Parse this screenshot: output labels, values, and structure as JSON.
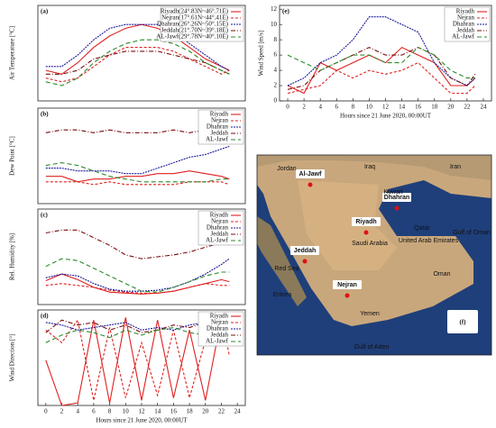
{
  "chart_data": [
    {
      "type": "line",
      "panel_label": "(a)",
      "ylabel": "Air Temperature [°C]",
      "xlim": [
        -1,
        25
      ],
      "ylim": [
        20,
        45
      ],
      "legend": "upper right",
      "x": [
        0,
        2,
        4,
        6,
        8,
        10,
        12,
        14,
        16,
        18,
        20,
        22,
        23
      ],
      "series": [
        {
          "name": "Riyadh(24°.83N~46°.71E)",
          "color": "#e02020",
          "values": [
            28,
            27,
            30,
            34,
            37,
            39,
            40,
            39,
            37,
            34,
            31,
            29,
            28
          ]
        },
        {
          "name": "Nejran(17°.61N~44°.41E)",
          "color": "#e02020",
          "dash": "3 2",
          "values": [
            26,
            25,
            26,
            29,
            32,
            34,
            34,
            34,
            33,
            31,
            29,
            27,
            28
          ]
        },
        {
          "name": "Dhahran(26°.26N~50°.15E)",
          "color": "#1a1a9a",
          "dash": "2 1",
          "values": [
            29,
            29,
            32,
            36,
            39,
            40,
            40,
            40,
            38,
            35,
            32,
            29,
            28
          ]
        },
        {
          "name": "Jeddah(21°.70N~39°.18E)",
          "color": "#7a0c0c",
          "dash": "5 2 1 2",
          "values": [
            27,
            27,
            28,
            31,
            32,
            33,
            33,
            33,
            32,
            31,
            30,
            28,
            27
          ]
        },
        {
          "name": "AL-Jawf(29°.78N~40°.10E)",
          "color": "#2a8a2a",
          "dash": "5 3",
          "values": [
            25,
            24,
            26,
            30,
            33,
            35,
            36,
            36,
            35,
            33,
            30,
            28,
            27
          ]
        }
      ]
    },
    {
      "type": "line",
      "panel_label": "(b)",
      "ylabel": "Dew Point [°C]",
      "xlim": [
        -1,
        25
      ],
      "ylim": [
        -5,
        30
      ],
      "legend": "upper right",
      "x": [
        0,
        2,
        4,
        6,
        8,
        10,
        12,
        14,
        16,
        18,
        20,
        22,
        23
      ],
      "series": [
        {
          "name": "Riyadh",
          "color": "#e02020",
          "values": [
            5,
            5,
            3,
            4,
            4,
            5,
            5,
            6,
            6,
            7,
            6,
            5,
            4
          ]
        },
        {
          "name": "Nejran",
          "color": "#e02020",
          "dash": "3 2",
          "values": [
            3,
            3,
            3,
            2,
            3,
            2,
            2,
            2,
            2,
            3,
            3,
            3,
            2
          ]
        },
        {
          "name": "Dhahran",
          "color": "#1a1a9a",
          "dash": "2 1",
          "values": [
            8,
            8,
            7,
            7,
            7,
            6,
            6,
            8,
            10,
            12,
            13,
            15,
            16
          ]
        },
        {
          "name": "Jeddah",
          "color": "#7a0c0c",
          "dash": "5 2 1 2",
          "values": [
            21,
            22,
            22,
            21,
            22,
            21,
            21,
            21,
            22,
            21,
            22,
            21,
            21
          ]
        },
        {
          "name": "AL-Jawf",
          "color": "#2a8a2a",
          "dash": "5 3",
          "values": [
            9,
            10,
            9,
            7,
            5,
            4,
            3,
            3,
            3,
            3,
            3,
            4,
            4
          ]
        }
      ]
    },
    {
      "type": "line",
      "panel_label": "(c)",
      "ylabel": "Rel. Humidity [%]",
      "xlim": [
        -1,
        25
      ],
      "ylim": [
        0,
        100
      ],
      "legend": "upper right",
      "x": [
        0,
        2,
        4,
        6,
        8,
        10,
        12,
        14,
        16,
        18,
        20,
        22,
        23
      ],
      "series": [
        {
          "name": "Riyadh",
          "color": "#e02020",
          "values": [
            25,
            32,
            26,
            18,
            13,
            12,
            11,
            12,
            14,
            18,
            22,
            26,
            24
          ]
        },
        {
          "name": "Nejran",
          "color": "#e02020",
          "dash": "3 2",
          "values": [
            20,
            22,
            20,
            18,
            15,
            13,
            12,
            12,
            14,
            18,
            22,
            20,
            20
          ]
        },
        {
          "name": "Dhahran",
          "color": "#1a1a9a",
          "dash": "2 1",
          "values": [
            28,
            32,
            30,
            22,
            16,
            14,
            14,
            15,
            18,
            24,
            32,
            42,
            48
          ]
        },
        {
          "name": "Jeddah",
          "color": "#7a0c0c",
          "dash": "5 2 1 2",
          "values": [
            75,
            78,
            78,
            70,
            62,
            52,
            48,
            50,
            52,
            55,
            60,
            65,
            67
          ]
        },
        {
          "name": "AL-Jawf",
          "color": "#2a8a2a",
          "dash": "5 3",
          "values": [
            40,
            48,
            46,
            38,
            30,
            22,
            14,
            13,
            18,
            24,
            30,
            34,
            34
          ]
        }
      ]
    },
    {
      "type": "line",
      "panel_label": "(d)",
      "ylabel": "Wind Direction [°]",
      "xlabel": "Hours since 21 June 2020, 00:00UT",
      "xlim": [
        -1,
        25
      ],
      "ylim": [
        0,
        380
      ],
      "legend": "upper right",
      "xticks": [
        0,
        2,
        4,
        6,
        8,
        10,
        12,
        14,
        16,
        18,
        20,
        22,
        24
      ],
      "x": [
        0,
        2,
        4,
        6,
        8,
        10,
        12,
        14,
        16,
        18,
        20,
        22,
        23
      ],
      "series": [
        {
          "name": "Riyadh",
          "color": "#e02020",
          "values": [
            180,
            0,
            10,
            340,
            10,
            350,
            20,
            340,
            30,
            300,
            20,
            350,
            250
          ]
        },
        {
          "name": "Nejran",
          "color": "#e02020",
          "dash": "3 2",
          "values": [
            300,
            250,
            340,
            20,
            310,
            30,
            250,
            40,
            300,
            30,
            260,
            350,
            200
          ]
        },
        {
          "name": "Dhahran",
          "color": "#1a1a9a",
          "dash": "2 1",
          "values": [
            330,
            320,
            300,
            310,
            320,
            330,
            300,
            310,
            300,
            320,
            330,
            340,
            280
          ]
        },
        {
          "name": "Jeddah",
          "color": "#7a0c0c",
          "dash": "5 2 1 2",
          "values": [
            290,
            340,
            320,
            330,
            300,
            320,
            290,
            300,
            320,
            310,
            330,
            300,
            290
          ]
        },
        {
          "name": "AL-Jawf",
          "color": "#2a8a2a",
          "dash": "5 3",
          "values": [
            250,
            280,
            300,
            290,
            270,
            300,
            280,
            300,
            310,
            290,
            280,
            300,
            270
          ]
        }
      ]
    },
    {
      "type": "line",
      "panel_label": "(e)",
      "ylabel": "Wind Speed [m/s]",
      "xlabel": "Hours since 21 June 2020, 00:00UT",
      "xlim": [
        -1,
        25
      ],
      "ylim": [
        0,
        12.5
      ],
      "legend": "upper right",
      "xticks": [
        0,
        2,
        4,
        6,
        8,
        10,
        12,
        14,
        16,
        18,
        20,
        22,
        24
      ],
      "yticks": [
        0,
        2,
        4,
        6,
        8,
        10,
        12
      ],
      "x": [
        0,
        2,
        4,
        6,
        8,
        10,
        12,
        14,
        16,
        18,
        20,
        22,
        23
      ],
      "series": [
        {
          "name": "Riyadh",
          "color": "#e02020",
          "values": [
            2,
            1,
            5,
            4,
            5,
            6,
            5,
            7,
            6,
            5,
            2,
            2,
            3
          ]
        },
        {
          "name": "Nejran",
          "color": "#e02020",
          "dash": "3 2",
          "values": [
            1,
            1.5,
            2,
            4,
            3,
            4,
            3.5,
            4,
            5,
            3,
            1,
            1,
            2
          ]
        },
        {
          "name": "Dhahran",
          "color": "#1a1a9a",
          "dash": "2 1",
          "values": [
            2,
            3,
            5,
            6,
            8,
            11,
            11,
            10,
            9,
            5,
            3,
            2,
            3
          ]
        },
        {
          "name": "Jeddah",
          "color": "#7a0c0c",
          "dash": "5 2 1 2",
          "values": [
            1.5,
            2,
            4,
            5,
            6,
            7,
            6,
            6,
            7,
            6,
            3,
            2,
            3.5
          ]
        },
        {
          "name": "AL-Jawf",
          "color": "#2a8a2a",
          "dash": "5 3",
          "values": [
            6,
            5,
            4,
            5,
            6,
            6,
            5,
            5,
            7,
            6,
            4,
            3,
            3
          ]
        }
      ]
    }
  ],
  "map": {
    "panel_label": "(f)",
    "cities": [
      "Al-Jawf",
      "Riyadh",
      "Dhahran",
      "Jeddah",
      "Nejran"
    ],
    "places": [
      "Jordan",
      "Iraq",
      "Iran",
      "Kuwait",
      "Saudi Arabia",
      "Qatar",
      "United Arab Emirates",
      "Oman",
      "Yemen",
      "Eritrea",
      "Red Sea",
      "Gulf of Aden",
      "Gulf of Oman"
    ]
  }
}
